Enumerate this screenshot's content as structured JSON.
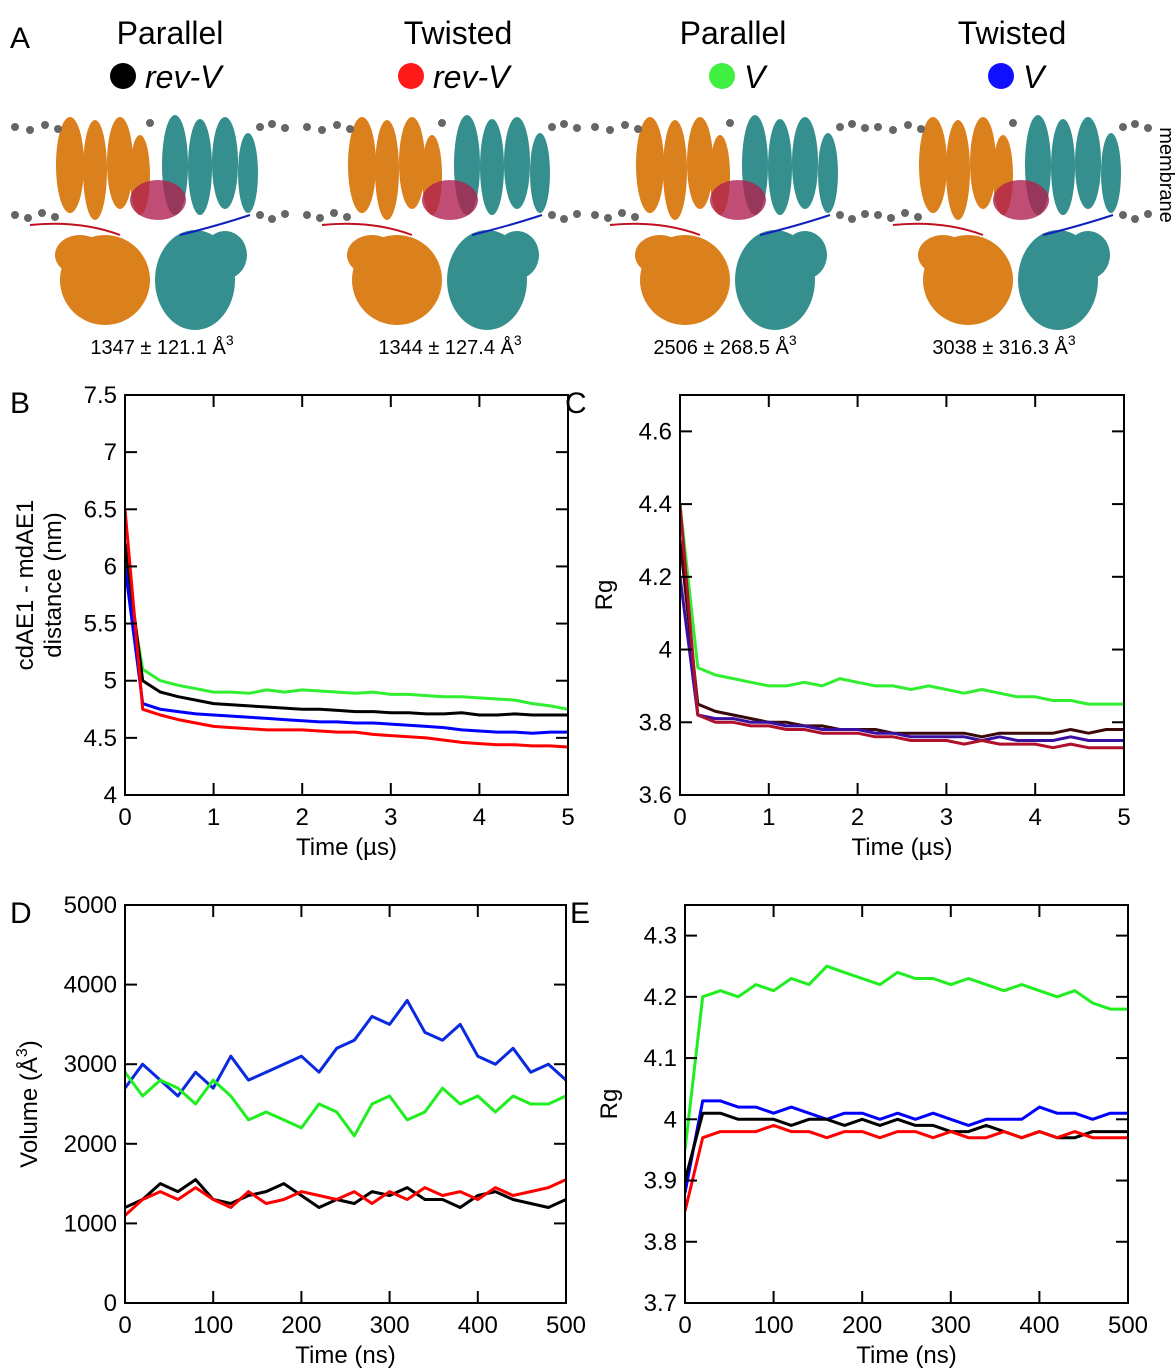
{
  "panel_a": {
    "panel": "A",
    "membrane_label": "membrane",
    "columns": [
      {
        "arrangement": "Parallel",
        "label": "rev-V",
        "color": "#000000",
        "volume": "1347 ± 121.1 Å",
        "volume_exponent": "3"
      },
      {
        "arrangement": "Twisted",
        "label": "rev-V",
        "color": "#ff1a1a",
        "volume": "1344 ± 127.4 Å",
        "volume_exponent": "3"
      },
      {
        "arrangement": "Parallel",
        "label": "V",
        "color": "#40f040",
        "volume": "2506 ± 268.5 Å",
        "volume_exponent": "3"
      },
      {
        "arrangement": "Twisted",
        "label": "V",
        "color": "#1010ff",
        "volume": "3038 ± 316.3 Å",
        "volume_exponent": "3"
      }
    ]
  },
  "chart_data": [
    {
      "type": "line",
      "panel": "B",
      "xlabel": "Time (µs)",
      "ylabel": [
        "cdAE1 - mdAE1",
        "distance (nm)"
      ],
      "xlim": [
        0,
        5
      ],
      "xticks": [
        0,
        1,
        2,
        3,
        4,
        5
      ],
      "ylim": [
        4,
        7.5
      ],
      "yticks": [
        4,
        4.5,
        5,
        5.5,
        6,
        6.5,
        7,
        7.5
      ],
      "x": [
        0,
        0.2,
        0.4,
        0.6,
        0.8,
        1,
        1.2,
        1.4,
        1.6,
        1.8,
        2,
        2.2,
        2.4,
        2.6,
        2.8,
        3,
        3.2,
        3.4,
        3.6,
        3.8,
        4,
        4.2,
        4.4,
        4.6,
        4.8,
        5
      ],
      "series": [
        {
          "color": "#30ee30",
          "values": [
            6.0,
            5.1,
            5.0,
            4.96,
            4.93,
            4.9,
            4.9,
            4.89,
            4.92,
            4.9,
            4.92,
            4.91,
            4.9,
            4.89,
            4.9,
            4.88,
            4.88,
            4.87,
            4.86,
            4.86,
            4.85,
            4.84,
            4.83,
            4.8,
            4.78,
            4.75
          ]
        },
        {
          "color": "#000000",
          "values": [
            6.2,
            5.0,
            4.9,
            4.86,
            4.83,
            4.8,
            4.79,
            4.78,
            4.77,
            4.76,
            4.75,
            4.75,
            4.74,
            4.73,
            4.73,
            4.72,
            4.72,
            4.71,
            4.71,
            4.72,
            4.7,
            4.7,
            4.71,
            4.7,
            4.7,
            4.7
          ]
        },
        {
          "color": "#0000ff",
          "values": [
            6.0,
            4.8,
            4.75,
            4.73,
            4.71,
            4.7,
            4.69,
            4.68,
            4.67,
            4.66,
            4.65,
            4.64,
            4.64,
            4.63,
            4.63,
            4.62,
            4.61,
            4.6,
            4.59,
            4.57,
            4.56,
            4.55,
            4.55,
            4.54,
            4.55,
            4.55
          ]
        },
        {
          "color": "#ff0000",
          "values": [
            6.5,
            4.75,
            4.7,
            4.66,
            4.63,
            4.6,
            4.59,
            4.58,
            4.57,
            4.57,
            4.57,
            4.56,
            4.55,
            4.55,
            4.53,
            4.52,
            4.51,
            4.5,
            4.48,
            4.46,
            4.45,
            4.44,
            4.44,
            4.43,
            4.43,
            4.42
          ]
        }
      ]
    },
    {
      "type": "line",
      "panel": "C",
      "xlabel": "Time (µs)",
      "ylabel": [
        "Rg"
      ],
      "xlim": [
        0,
        5
      ],
      "xticks": [
        0,
        1,
        2,
        3,
        4,
        5
      ],
      "ylim": [
        3.6,
        4.7
      ],
      "yticks": [
        3.6,
        3.8,
        4,
        4.2,
        4.4,
        4.6
      ],
      "x": [
        0,
        0.2,
        0.4,
        0.6,
        0.8,
        1,
        1.2,
        1.4,
        1.6,
        1.8,
        2,
        2.2,
        2.4,
        2.6,
        2.8,
        3,
        3.2,
        3.4,
        3.6,
        3.8,
        4,
        4.2,
        4.4,
        4.6,
        4.8,
        5
      ],
      "series": [
        {
          "color": "#30ee30",
          "values": [
            4.4,
            3.95,
            3.93,
            3.92,
            3.91,
            3.9,
            3.9,
            3.91,
            3.9,
            3.92,
            3.91,
            3.9,
            3.9,
            3.89,
            3.9,
            3.89,
            3.88,
            3.89,
            3.88,
            3.87,
            3.87,
            3.86,
            3.86,
            3.85,
            3.85,
            3.85
          ]
        },
        {
          "color": "#3a0a0a",
          "values": [
            4.3,
            3.85,
            3.83,
            3.82,
            3.81,
            3.8,
            3.8,
            3.79,
            3.79,
            3.78,
            3.78,
            3.78,
            3.77,
            3.77,
            3.77,
            3.77,
            3.77,
            3.76,
            3.77,
            3.77,
            3.77,
            3.77,
            3.78,
            3.77,
            3.78,
            3.78
          ]
        },
        {
          "color": "#3a10a0",
          "values": [
            4.2,
            3.82,
            3.81,
            3.81,
            3.8,
            3.8,
            3.79,
            3.79,
            3.78,
            3.78,
            3.78,
            3.77,
            3.77,
            3.76,
            3.76,
            3.76,
            3.76,
            3.75,
            3.76,
            3.75,
            3.75,
            3.75,
            3.76,
            3.75,
            3.75,
            3.75
          ]
        },
        {
          "color": "#b0102a",
          "values": [
            4.4,
            3.82,
            3.8,
            3.8,
            3.79,
            3.79,
            3.78,
            3.78,
            3.77,
            3.77,
            3.77,
            3.76,
            3.76,
            3.75,
            3.75,
            3.75,
            3.74,
            3.75,
            3.74,
            3.74,
            3.74,
            3.73,
            3.74,
            3.73,
            3.73,
            3.73
          ]
        }
      ]
    },
    {
      "type": "line",
      "panel": "D",
      "xlabel": "Time (ns)",
      "ylabel": [
        "Volume (Å",
        "3",
        ")"
      ],
      "xlim": [
        0,
        500
      ],
      "xticks": [
        0,
        100,
        200,
        300,
        400,
        500
      ],
      "ylim": [
        0,
        5000
      ],
      "yticks": [
        0,
        1000,
        2000,
        3000,
        4000,
        5000
      ],
      "x": [
        0,
        20,
        40,
        60,
        80,
        100,
        120,
        140,
        160,
        180,
        200,
        220,
        240,
        260,
        280,
        300,
        320,
        340,
        360,
        380,
        400,
        420,
        440,
        460,
        480,
        500
      ],
      "series": [
        {
          "color": "#0a2ae0",
          "values": [
            2700,
            3000,
            2800,
            2600,
            2900,
            2700,
            3100,
            2800,
            2900,
            3000,
            3100,
            2900,
            3200,
            3300,
            3600,
            3500,
            3800,
            3400,
            3300,
            3500,
            3100,
            3000,
            3200,
            2900,
            3000,
            2800
          ]
        },
        {
          "color": "#20ee20",
          "values": [
            2900,
            2600,
            2800,
            2700,
            2500,
            2800,
            2600,
            2300,
            2400,
            2300,
            2200,
            2500,
            2400,
            2100,
            2500,
            2600,
            2300,
            2400,
            2700,
            2500,
            2600,
            2400,
            2600,
            2500,
            2500,
            2600
          ]
        },
        {
          "color": "#000000",
          "values": [
            1200,
            1300,
            1500,
            1400,
            1550,
            1300,
            1250,
            1350,
            1400,
            1500,
            1350,
            1200,
            1300,
            1250,
            1400,
            1350,
            1450,
            1300,
            1300,
            1200,
            1350,
            1400,
            1300,
            1250,
            1200,
            1300
          ]
        },
        {
          "color": "#ff0000",
          "values": [
            1100,
            1300,
            1400,
            1300,
            1450,
            1300,
            1200,
            1400,
            1250,
            1300,
            1400,
            1350,
            1300,
            1400,
            1250,
            1400,
            1300,
            1450,
            1350,
            1400,
            1300,
            1450,
            1350,
            1400,
            1450,
            1550
          ]
        }
      ]
    },
    {
      "type": "line",
      "panel": "E",
      "xlabel": "Time (ns)",
      "ylabel": [
        "Rg"
      ],
      "xlim": [
        0,
        500
      ],
      "xticks": [
        0,
        100,
        200,
        300,
        400,
        500
      ],
      "ylim": [
        3.7,
        4.35
      ],
      "yticks": [
        3.7,
        3.8,
        3.9,
        4,
        4.1,
        4.2,
        4.3
      ],
      "x": [
        0,
        20,
        40,
        60,
        80,
        100,
        120,
        140,
        160,
        180,
        200,
        220,
        240,
        260,
        280,
        300,
        320,
        340,
        360,
        380,
        400,
        420,
        440,
        460,
        480,
        500
      ],
      "series": [
        {
          "color": "#20ee20",
          "values": [
            3.95,
            4.2,
            4.21,
            4.2,
            4.22,
            4.21,
            4.23,
            4.22,
            4.25,
            4.24,
            4.23,
            4.22,
            4.24,
            4.23,
            4.23,
            4.22,
            4.23,
            4.22,
            4.21,
            4.22,
            4.21,
            4.2,
            4.21,
            4.19,
            4.18,
            4.18
          ]
        },
        {
          "color": "#0000ff",
          "values": [
            3.88,
            4.03,
            4.03,
            4.02,
            4.02,
            4.01,
            4.02,
            4.01,
            4.0,
            4.01,
            4.01,
            4.0,
            4.01,
            4.0,
            4.01,
            4.0,
            3.99,
            4.0,
            4.0,
            4.0,
            4.02,
            4.01,
            4.01,
            4.0,
            4.01,
            4.01
          ]
        },
        {
          "color": "#000000",
          "values": [
            3.9,
            4.01,
            4.01,
            4.0,
            4.0,
            4.0,
            3.99,
            4.0,
            4.0,
            3.99,
            4.0,
            3.99,
            4.0,
            3.99,
            3.99,
            3.98,
            3.98,
            3.99,
            3.98,
            3.97,
            3.98,
            3.97,
            3.97,
            3.98,
            3.98,
            3.98
          ]
        },
        {
          "color": "#ff0000",
          "values": [
            3.85,
            3.97,
            3.98,
            3.98,
            3.98,
            3.99,
            3.98,
            3.98,
            3.97,
            3.98,
            3.98,
            3.97,
            3.98,
            3.98,
            3.97,
            3.98,
            3.97,
            3.97,
            3.98,
            3.97,
            3.98,
            3.97,
            3.98,
            3.97,
            3.97,
            3.97
          ]
        }
      ]
    }
  ]
}
